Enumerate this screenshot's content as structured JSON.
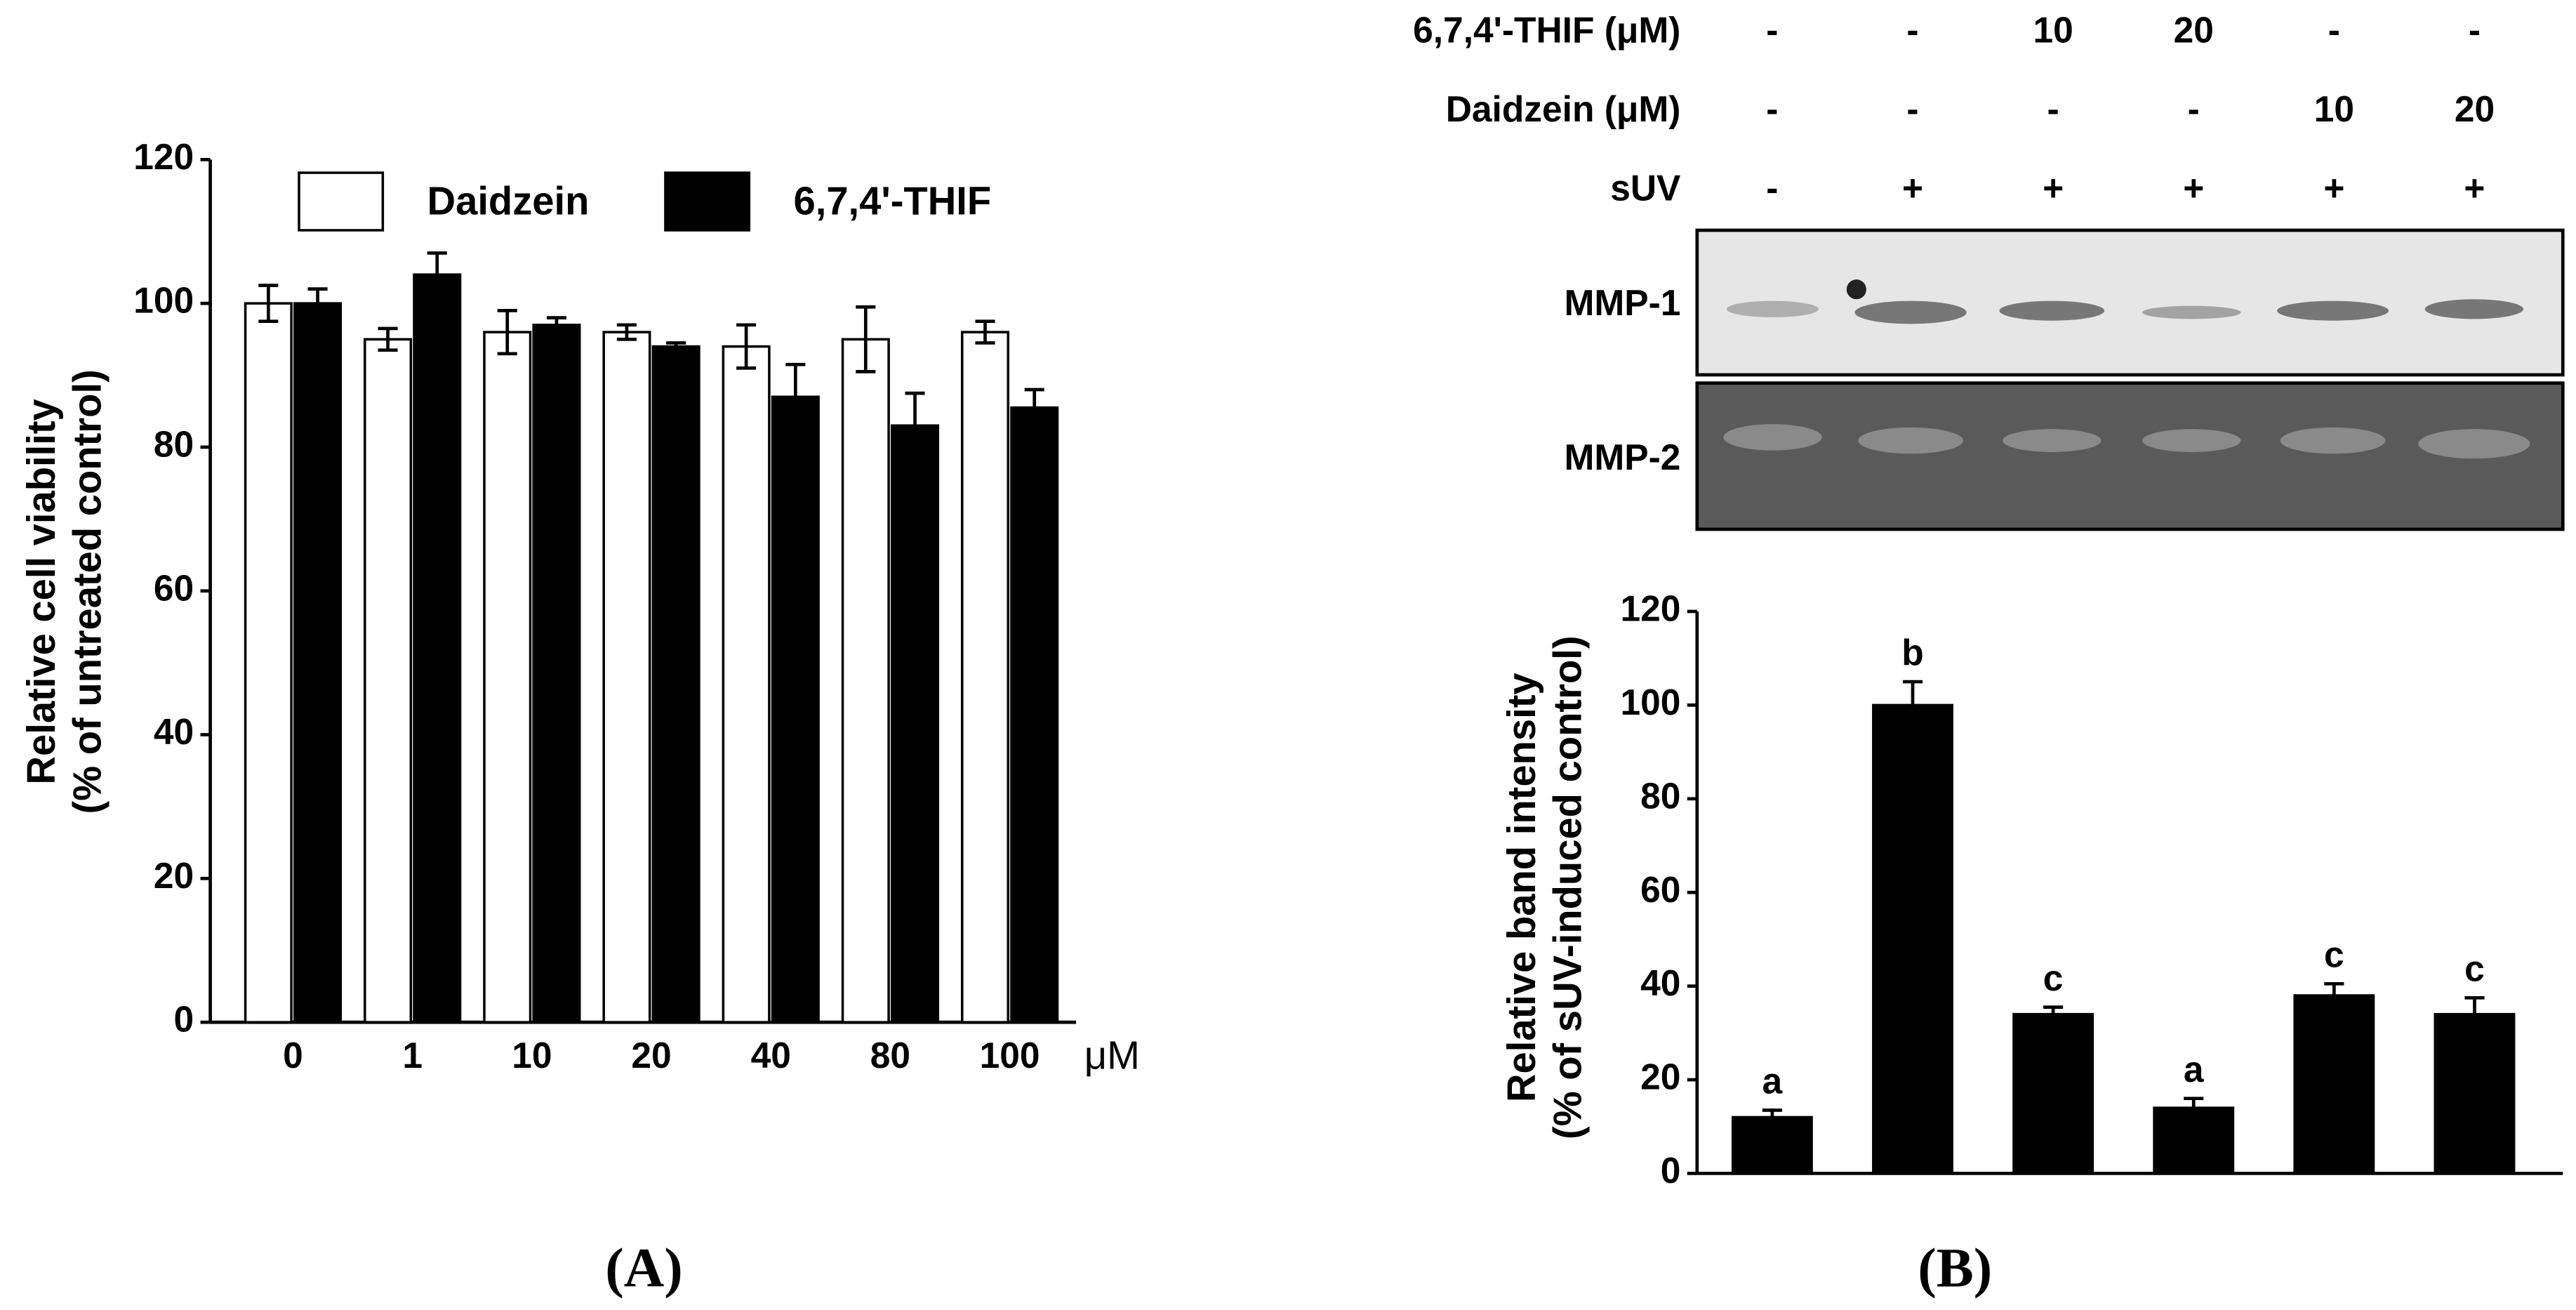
{
  "chart_data": [
    {
      "type": "bar",
      "panel": "(A)",
      "ylabel": [
        "Relative cell viability",
        "(% of untreated control)"
      ],
      "xunit": "μM",
      "categories": [
        "0",
        "1",
        "10",
        "20",
        "40",
        "80",
        "100"
      ],
      "series": [
        {
          "name": "Daidzein",
          "color": "#ffffff",
          "values": [
            100,
            95,
            96,
            96,
            94,
            95,
            96
          ],
          "errors": [
            2.5,
            1.5,
            3,
            1,
            3,
            4.5,
            1.5
          ]
        },
        {
          "name": "6,7,4'-THIF",
          "color": "#000000",
          "values": [
            100,
            104,
            97,
            94,
            87,
            83,
            85.5
          ],
          "errors": [
            2,
            3,
            1,
            0.5,
            4.5,
            4.5,
            2.5
          ]
        }
      ],
      "ylim": [
        0,
        120
      ],
      "yticks": [
        0,
        20,
        40,
        60,
        80,
        100,
        120
      ],
      "grid": false
    },
    {
      "type": "bar",
      "panel": "(B)",
      "ylabel": [
        "Relative band intensity",
        "(% of sUV-induced control)"
      ],
      "treatments": [
        {
          "label": "6,7,4'-THIF (μM)",
          "cells": [
            "-",
            "-",
            "10",
            "20",
            "-",
            "-"
          ]
        },
        {
          "label": "Daidzein (μM)",
          "cells": [
            "-",
            "-",
            "-",
            "-",
            "10",
            "20"
          ]
        },
        {
          "label": "sUV",
          "cells": [
            "-",
            "+",
            "+",
            "+",
            "+",
            "+"
          ]
        }
      ],
      "blot_labels": [
        "MMP-1",
        "MMP-2"
      ],
      "categories": [
        null,
        null,
        null,
        null,
        null,
        null
      ],
      "series": [
        {
          "color": "#000000",
          "values": [
            12,
            100,
            34,
            14,
            38,
            34
          ],
          "errors": [
            1.5,
            5,
            1.5,
            2,
            2.5,
            3.5
          ]
        }
      ],
      "annotations": [
        "a",
        "b",
        "c",
        "a",
        "c",
        "c"
      ],
      "ylim": [
        0,
        120
      ],
      "yticks": [
        0,
        20,
        40,
        60,
        80,
        100,
        120
      ],
      "grid": false
    }
  ]
}
